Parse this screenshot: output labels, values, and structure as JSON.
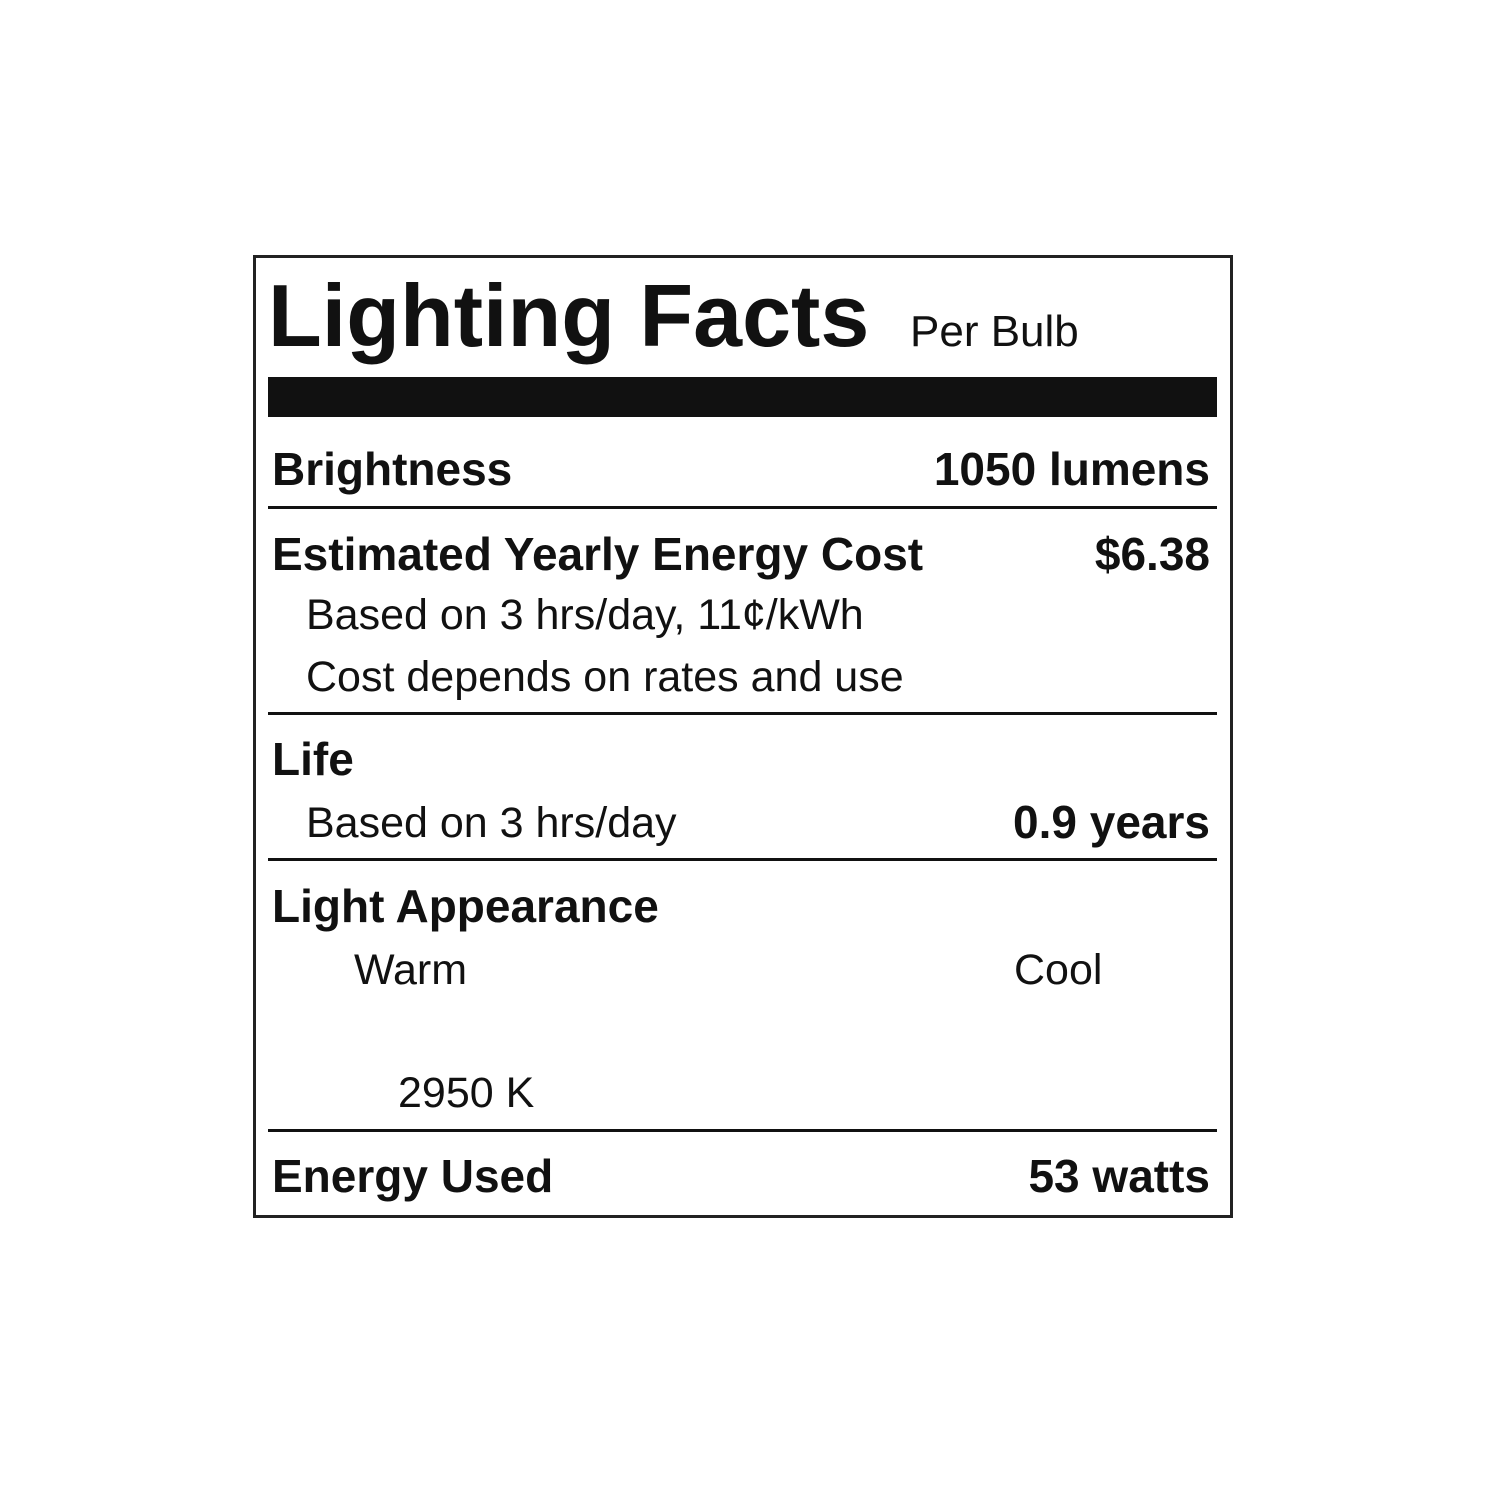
{
  "title": "Lighting Facts",
  "subtitle": "Per Bulb",
  "brightness": {
    "label": "Brightness",
    "value": "1050 lumens"
  },
  "energy_cost": {
    "label": "Estimated Yearly Energy Cost",
    "value": "$6.38",
    "note1": "Based on 3 hrs/day, 11¢/kWh",
    "note2": "Cost depends on rates and use"
  },
  "life": {
    "label": "Life",
    "note": "Based on 3 hrs/day",
    "value": "0.9 years"
  },
  "light_appearance": {
    "label": "Light Appearance",
    "warm_label": "Warm",
    "cool_label": "Cool",
    "value": "2950 K"
  },
  "energy_used": {
    "label": "Energy Used",
    "value": "53 watts"
  }
}
